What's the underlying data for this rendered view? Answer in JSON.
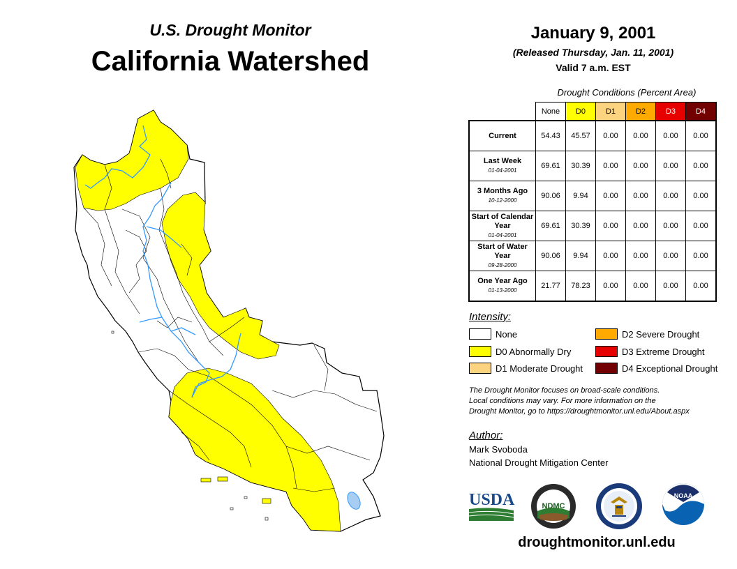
{
  "header": {
    "subtitle": "U.S. Drought Monitor",
    "title": "California Watershed",
    "date": "January 9, 2001",
    "released": "(Released Thursday, Jan. 11, 2001)",
    "valid": "Valid 7 a.m. EST"
  },
  "table": {
    "caption": "Drought Conditions (Percent Area)",
    "columns": [
      "None",
      "D0",
      "D1",
      "D2",
      "D3",
      "D4"
    ],
    "rows": [
      {
        "label": "Current",
        "date": "",
        "values": [
          "54.43",
          "45.57",
          "0.00",
          "0.00",
          "0.00",
          "0.00"
        ]
      },
      {
        "label": "Last Week",
        "date": "01-04-2001",
        "values": [
          "69.61",
          "30.39",
          "0.00",
          "0.00",
          "0.00",
          "0.00"
        ]
      },
      {
        "label": "3 Months Ago",
        "date": "10-12-2000",
        "values": [
          "90.06",
          "9.94",
          "0.00",
          "0.00",
          "0.00",
          "0.00"
        ]
      },
      {
        "label": "Start of Calendar Year",
        "date": "01-04-2001",
        "values": [
          "69.61",
          "30.39",
          "0.00",
          "0.00",
          "0.00",
          "0.00"
        ]
      },
      {
        "label": "Start of Water Year",
        "date": "09-28-2000",
        "values": [
          "90.06",
          "9.94",
          "0.00",
          "0.00",
          "0.00",
          "0.00"
        ]
      },
      {
        "label": "One Year Ago",
        "date": "01-13-2000",
        "values": [
          "21.77",
          "78.23",
          "0.00",
          "0.00",
          "0.00",
          "0.00"
        ]
      }
    ]
  },
  "legend": {
    "title": "Intensity:",
    "items": [
      {
        "label": "None",
        "color": "#ffffff"
      },
      {
        "label": "D0 Abnormally Dry",
        "color": "#ffff00"
      },
      {
        "label": "D1 Moderate Drought",
        "color": "#fcd37f"
      },
      {
        "label": "D2 Severe Drought",
        "color": "#ffaa00"
      },
      {
        "label": "D3 Extreme Drought",
        "color": "#e60000"
      },
      {
        "label": "D4 Exceptional Drought",
        "color": "#730000"
      }
    ]
  },
  "disclaimer": {
    "line1": "The Drought Monitor focuses on broad-scale conditions.",
    "line2": "Local conditions may vary. For more information on the",
    "line3": "Drought Monitor, go to https://droughtmonitor.unl.edu/About.aspx"
  },
  "author": {
    "title": "Author:",
    "name": "Mark Svoboda",
    "org": "National Drought Mitigation Center"
  },
  "logos": {
    "usda": "USDA",
    "ndmc": "NDMC",
    "noaa": "NOAA"
  },
  "footer": {
    "site": "droughtmonitor.unl.edu"
  },
  "colors": {
    "d0": "#ffff00",
    "river": "#3399ff",
    "usda_blue": "#1a4a8a",
    "usda_green": "#2e7d32",
    "noaa_blue": "#0a62b3"
  }
}
